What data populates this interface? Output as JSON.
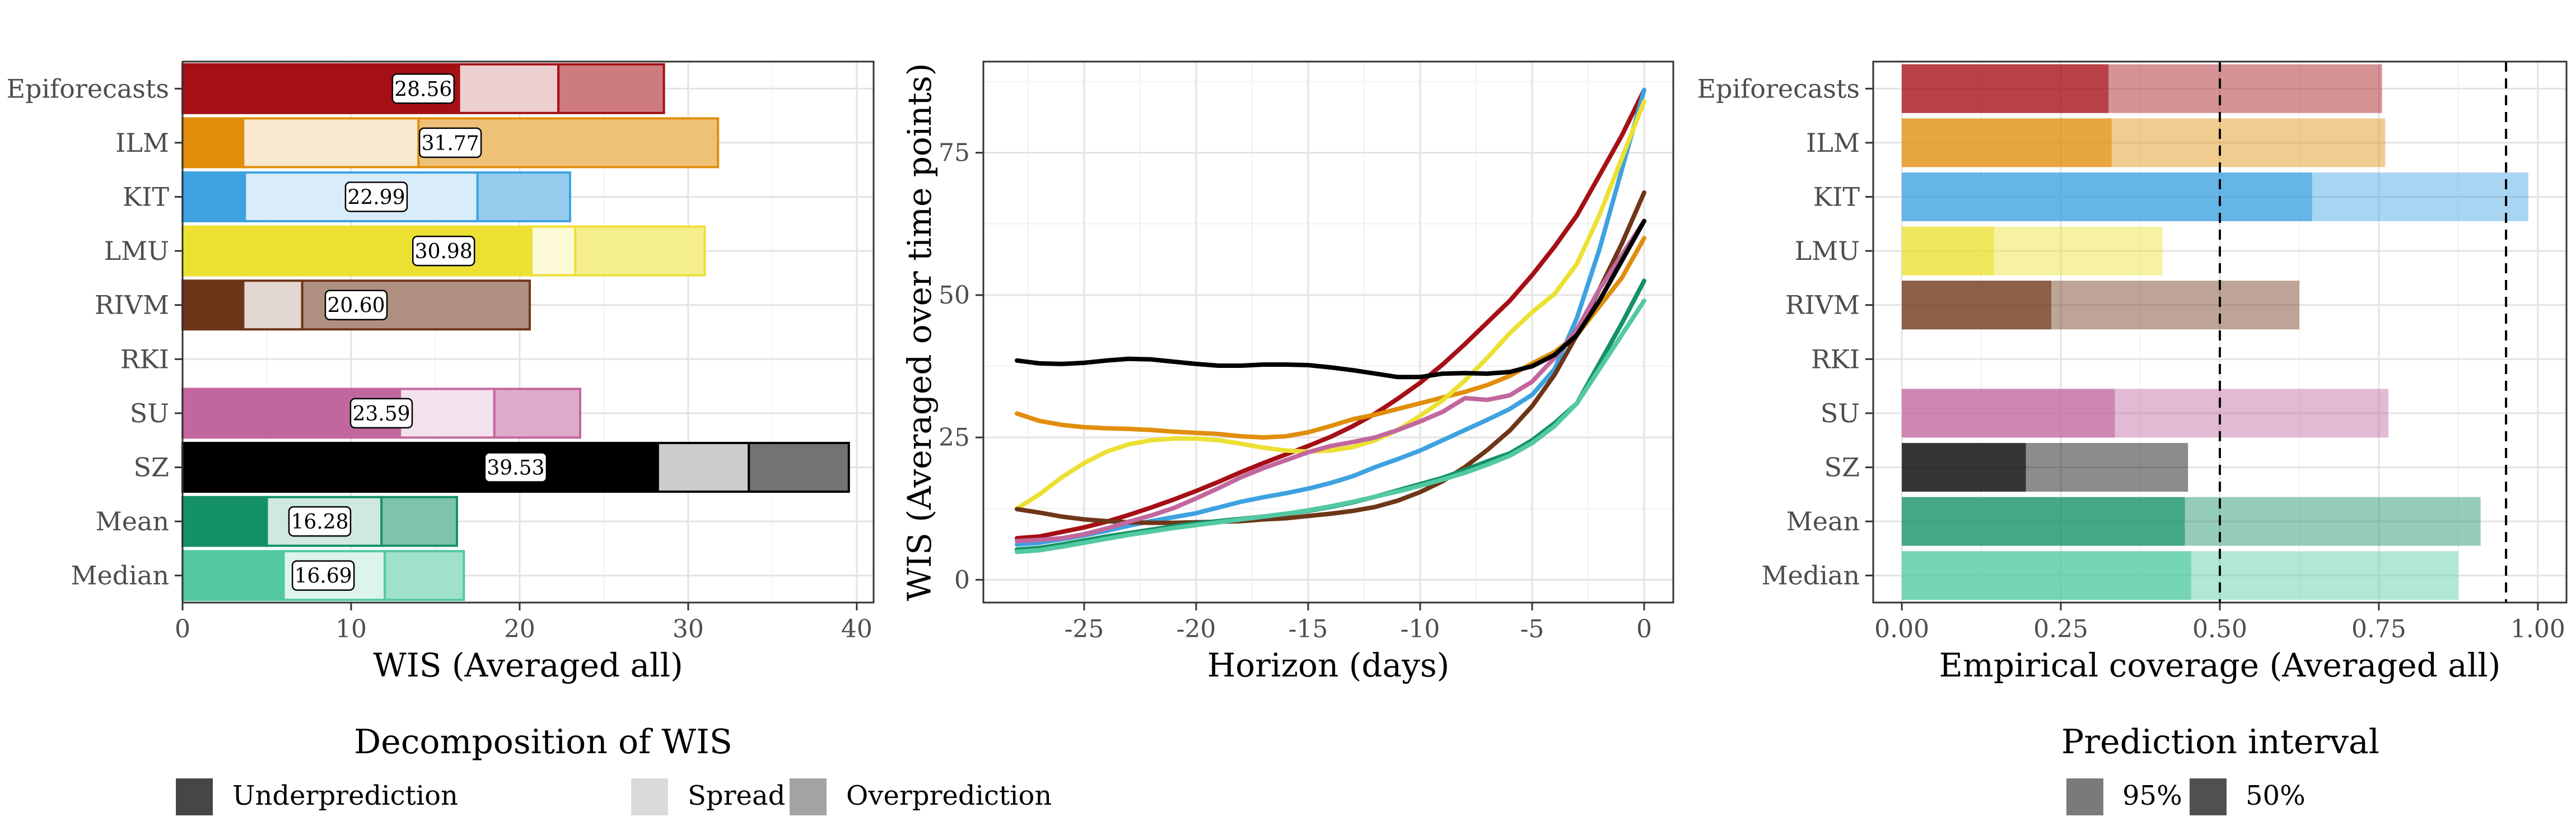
{
  "models": [
    "Epiforecasts",
    "ILM",
    "KIT",
    "LMU",
    "RIVM",
    "RKI",
    "SU",
    "SZ",
    "Mean",
    "Median"
  ],
  "colors": {
    "Epiforecasts": "#a50f15",
    "ILM": "#e08e0b",
    "KIT": "#3ea2e0",
    "LMU": "#ece033",
    "RIVM": "#6e3618",
    "RKI": "#3b3b3b",
    "SU": "#c2679e",
    "SZ": "#000000",
    "Mean": "#149165",
    "Median": "#52c9a3"
  },
  "chart_data": [
    {
      "type": "bar",
      "subtype": "stacked-horizontal",
      "xlabel": "WIS (Averaged all)",
      "ylabel": "",
      "xlim": [
        0,
        41
      ],
      "xticks": [
        0,
        10,
        20,
        30,
        40
      ],
      "grid": true,
      "categories": [
        "Epiforecasts",
        "ILM",
        "KIT",
        "LMU",
        "RIVM",
        "RKI",
        "SU",
        "SZ",
        "Mean",
        "Median"
      ],
      "series": [
        {
          "name": "Underprediction",
          "values": [
            16.4,
            3.6,
            3.7,
            20.7,
            3.6,
            null,
            12.9,
            28.2,
            5.0,
            6.0
          ]
        },
        {
          "name": "Spread",
          "values": [
            5.9,
            10.4,
            13.8,
            2.6,
            3.5,
            null,
            5.6,
            5.4,
            6.8,
            6.0
          ]
        },
        {
          "name": "Overprediction",
          "values": [
            6.26,
            17.77,
            5.49,
            7.68,
            13.5,
            null,
            5.09,
            5.93,
            4.48,
            4.69
          ]
        }
      ],
      "totals": [
        28.56,
        31.77,
        22.99,
        30.98,
        20.6,
        null,
        23.59,
        39.53,
        16.28,
        16.69
      ],
      "total_labels": [
        "28.56",
        "31.77",
        "22.99",
        "30.98",
        "20.60",
        "",
        "23.59",
        "39.53",
        "16.28",
        "16.69"
      ],
      "legend": {
        "title": "Decomposition of WIS",
        "position": "bottom",
        "items": [
          "Underprediction",
          "Spread",
          "Overprediction"
        ]
      }
    },
    {
      "type": "line",
      "xlabel": "Horizon (days)",
      "ylabel": "WIS (Averaged over time points)",
      "xlim": [
        -29.5,
        1.3
      ],
      "ylim": [
        -4,
        91
      ],
      "xticks": [
        -25,
        -20,
        -15,
        -10,
        -5,
        0
      ],
      "xtick_labels": [
        "-25",
        "-20",
        "-15",
        "-10",
        "-5",
        "0"
      ],
      "yticks": [
        0,
        25,
        50,
        75
      ],
      "grid": true,
      "x": [
        -28,
        -27,
        -26,
        -25,
        -24,
        -23,
        -22,
        -21,
        -20,
        -19,
        -18,
        -17,
        -16,
        -15,
        -14,
        -13,
        -12,
        -11,
        -10,
        -9,
        -8,
        -7,
        -6,
        -5,
        -4,
        -3,
        -2,
        -1,
        0
      ],
      "series": [
        {
          "name": "Epiforecasts",
          "values": [
            7.3,
            7.6,
            8.4,
            9.2,
            10.2,
            11.4,
            12.7,
            14.1,
            15.6,
            17.2,
            18.9,
            20.5,
            22.0,
            23.5,
            25.1,
            27.0,
            29.2,
            31.8,
            34.6,
            37.8,
            41.4,
            45.2,
            49.0,
            53.5,
            58.5,
            64.0,
            71.0,
            78.0,
            86.0
          ]
        },
        {
          "name": "ILM",
          "values": [
            29.2,
            27.9,
            27.2,
            26.8,
            26.6,
            26.5,
            26.3,
            26.0,
            25.8,
            25.6,
            25.2,
            25.0,
            25.2,
            25.9,
            27.0,
            28.2,
            29.0,
            30.0,
            31.0,
            32.0,
            33.0,
            34.2,
            35.8,
            38.0,
            40.0,
            43.0,
            48.0,
            53.0,
            60.0
          ]
        },
        {
          "name": "KIT",
          "values": [
            6.2,
            6.5,
            7.1,
            7.8,
            8.6,
            9.5,
            10.3,
            11.0,
            11.7,
            12.7,
            13.7,
            14.5,
            15.2,
            16.0,
            17.0,
            18.2,
            19.8,
            21.2,
            22.7,
            24.5,
            26.3,
            28.1,
            30.0,
            32.5,
            37.0,
            46.0,
            58.0,
            72.0,
            86.0
          ]
        },
        {
          "name": "LMU",
          "values": [
            12.5,
            15.0,
            18.0,
            20.5,
            22.5,
            23.8,
            24.5,
            24.8,
            24.8,
            24.5,
            23.9,
            23.2,
            22.7,
            22.5,
            22.7,
            23.3,
            24.5,
            26.3,
            28.8,
            31.5,
            35.0,
            39.0,
            43.3,
            47.0,
            50.2,
            55.5,
            64.0,
            74.0,
            84.0
          ]
        },
        {
          "name": "RIVM",
          "values": [
            12.4,
            11.8,
            11.1,
            10.6,
            10.3,
            10.1,
            10.0,
            10.0,
            10.1,
            10.2,
            10.3,
            10.6,
            10.8,
            11.2,
            11.6,
            12.1,
            12.8,
            13.9,
            15.4,
            17.3,
            19.8,
            22.8,
            26.2,
            30.5,
            36.0,
            43.0,
            51.0,
            59.0,
            68.0
          ]
        },
        {
          "name": "SU",
          "values": [
            6.8,
            7.0,
            7.3,
            8.0,
            9.0,
            10.2,
            11.3,
            12.6,
            14.3,
            16.1,
            18.0,
            19.6,
            21.0,
            22.4,
            23.5,
            24.2,
            25.0,
            26.3,
            27.8,
            29.5,
            31.9,
            31.6,
            32.4,
            34.8,
            39.0,
            44.0,
            51.0,
            57.0,
            63.0
          ]
        },
        {
          "name": "SZ",
          "values": [
            38.5,
            38.0,
            37.9,
            38.1,
            38.5,
            38.8,
            38.7,
            38.3,
            37.9,
            37.6,
            37.6,
            37.8,
            37.8,
            37.7,
            37.3,
            36.8,
            36.2,
            35.6,
            35.6,
            36.2,
            36.3,
            36.2,
            36.5,
            37.5,
            39.5,
            43.0,
            49.0,
            56.0,
            63.0
          ]
        },
        {
          "name": "Mean",
          "values": [
            5.3,
            5.6,
            6.2,
            6.9,
            7.6,
            8.2,
            8.8,
            9.4,
            9.9,
            10.3,
            10.7,
            11.1,
            11.6,
            12.1,
            12.8,
            13.6,
            14.6,
            15.7,
            16.8,
            17.9,
            19.3,
            20.8,
            22.2,
            24.5,
            27.5,
            31.0,
            38.0,
            45.0,
            52.5
          ]
        },
        {
          "name": "Median",
          "values": [
            4.9,
            5.2,
            5.8,
            6.5,
            7.2,
            7.9,
            8.5,
            9.1,
            9.6,
            10.1,
            10.6,
            11.1,
            11.6,
            12.2,
            12.9,
            13.7,
            14.6,
            15.5,
            16.5,
            17.6,
            18.8,
            20.2,
            21.8,
            24.0,
            27.0,
            31.0,
            37.0,
            43.0,
            49.0
          ]
        }
      ]
    },
    {
      "type": "bar",
      "subtype": "overlaid-horizontal",
      "xlabel": "Empirical coverage (Averaged all)",
      "ylabel": "",
      "xlim": [
        -0.045,
        1.045
      ],
      "xticks": [
        0.0,
        0.25,
        0.5,
        0.75,
        1.0
      ],
      "xtick_labels": [
        "0.00",
        "0.25",
        "0.50",
        "0.75",
        "1.00"
      ],
      "reference_lines": [
        0.5,
        0.95
      ],
      "grid": true,
      "categories": [
        "Epiforecasts",
        "ILM",
        "KIT",
        "LMU",
        "RIVM",
        "RKI",
        "SU",
        "SZ",
        "Mean",
        "Median"
      ],
      "series": [
        {
          "name": "95%",
          "values": [
            0.755,
            0.76,
            0.985,
            0.41,
            0.625,
            null,
            0.765,
            0.45,
            0.91,
            0.875
          ]
        },
        {
          "name": "50%",
          "values": [
            0.325,
            0.33,
            0.645,
            0.145,
            0.235,
            null,
            0.335,
            0.195,
            0.445,
            0.455
          ]
        }
      ],
      "legend": {
        "title": "Prediction interval",
        "position": "bottom",
        "items": [
          "95%",
          "50%"
        ]
      }
    }
  ]
}
